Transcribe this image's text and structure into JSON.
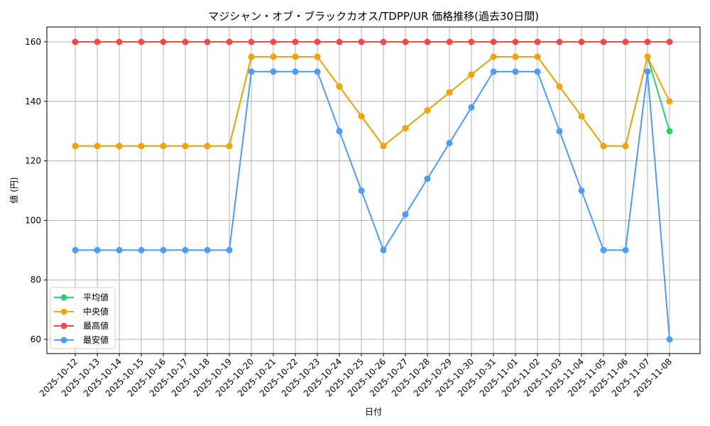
{
  "chart_data": {
    "type": "line",
    "title": "マジシャン・オブ・ブラックカオス/TDPP/UR 価格推移(過去30日間)",
    "xlabel": "日付",
    "ylabel": "値 (円)",
    "ylim": [
      55,
      165
    ],
    "yticks": [
      60,
      80,
      100,
      120,
      140,
      160
    ],
    "grid": true,
    "legend_position": "lower left",
    "categories": [
      "2025-10-12",
      "2025-10-13",
      "2025-10-14",
      "2025-10-15",
      "2025-10-16",
      "2025-10-17",
      "2025-10-18",
      "2025-10-19",
      "2025-10-20",
      "2025-10-21",
      "2025-10-22",
      "2025-10-23",
      "2025-10-24",
      "2025-10-25",
      "2025-10-26",
      "2025-10-27",
      "2025-10-28",
      "2025-10-29",
      "2025-10-30",
      "2025-10-31",
      "2025-11-01",
      "2025-11-02",
      "2025-11-03",
      "2025-11-04",
      "2025-11-05",
      "2025-11-06",
      "2025-11-07",
      "2025-11-08"
    ],
    "series": [
      {
        "name": "平均値",
        "color": "#2ecc71",
        "values": [
          125,
          125,
          125,
          125,
          125,
          125,
          125,
          125,
          155,
          155,
          155,
          155,
          145,
          135,
          125,
          131,
          137,
          143,
          149,
          155,
          155,
          155,
          145,
          135,
          125,
          125,
          155,
          130
        ]
      },
      {
        "name": "中央値",
        "color": "#f5a30a",
        "values": [
          125,
          125,
          125,
          125,
          125,
          125,
          125,
          125,
          155,
          155,
          155,
          155,
          145,
          135,
          125,
          131,
          137,
          143,
          149,
          155,
          155,
          155,
          145,
          135,
          125,
          125,
          155,
          140
        ]
      },
      {
        "name": "最高値",
        "color": "#f24a4a",
        "values": [
          160,
          160,
          160,
          160,
          160,
          160,
          160,
          160,
          160,
          160,
          160,
          160,
          160,
          160,
          160,
          160,
          160,
          160,
          160,
          160,
          160,
          160,
          160,
          160,
          160,
          160,
          160,
          160
        ]
      },
      {
        "name": "最安値",
        "color": "#4d9cf5",
        "values": [
          90,
          90,
          90,
          90,
          90,
          90,
          90,
          90,
          150,
          150,
          150,
          150,
          130,
          110,
          90,
          102,
          114,
          126,
          138,
          150,
          150,
          150,
          130,
          110,
          90,
          90,
          150,
          60
        ]
      }
    ]
  }
}
